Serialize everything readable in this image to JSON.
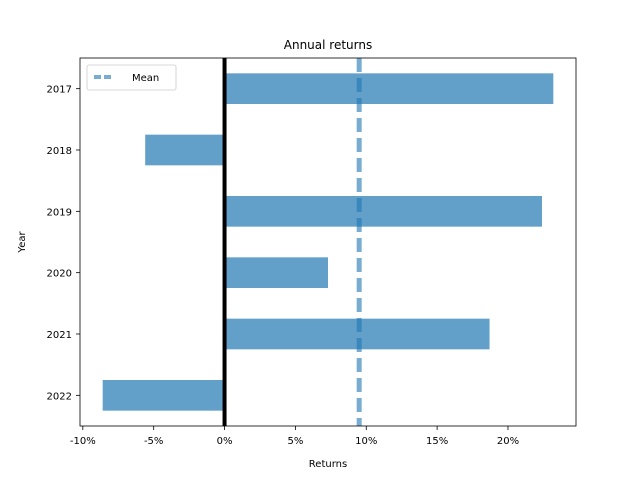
{
  "chart_data": {
    "type": "bar",
    "orientation": "horizontal",
    "title": "Annual returns",
    "xlabel": "Returns",
    "ylabel": "Year",
    "categories": [
      "2017",
      "2018",
      "2019",
      "2020",
      "2021",
      "2022"
    ],
    "values": [
      0.232,
      -0.056,
      0.224,
      0.073,
      0.187,
      -0.086
    ],
    "xlim": [
      -0.102,
      0.248
    ],
    "xticks": [
      -0.1,
      -0.05,
      0.0,
      0.05,
      0.1,
      0.15,
      0.2
    ],
    "xtick_labels": [
      "-10%",
      "-5%",
      "0%",
      "5%",
      "10%",
      "15%",
      "20%"
    ],
    "mean": 0.095,
    "legend": {
      "entries": [
        "Mean"
      ],
      "placement": "top-left"
    },
    "colors": {
      "bar": "#1f77b4",
      "zero_line": "#000000",
      "mean_line": "#1f77b4"
    },
    "grid": false
  }
}
